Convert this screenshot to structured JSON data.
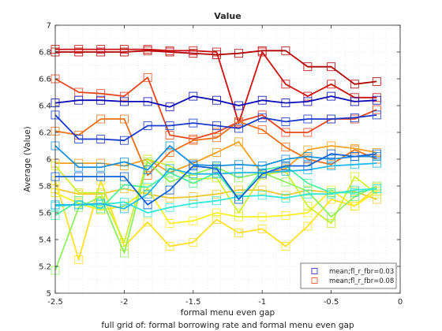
{
  "chart_data": {
    "type": "line",
    "title": "Value",
    "xlabel": "formal menu even gap",
    "ylabel": "Average (Value)",
    "caption": "full grid of: formal borrowing rate and formal menu even gap",
    "xlim": [
      -2.5,
      0
    ],
    "ylim": [
      5,
      7
    ],
    "x_ticks": [
      "-2.5",
      "-2",
      "-1.5",
      "-1",
      "-0.5",
      "0"
    ],
    "y_ticks": [
      "5",
      "5.2",
      "5.4",
      "5.6",
      "5.8",
      "6",
      "6.2",
      "6.4",
      "6.6",
      "6.8",
      "7"
    ],
    "grid": "dotted, major and minor",
    "legend_position": "bottom-right",
    "marker": "open square",
    "x": [
      -2.5,
      -2.33,
      -2.17,
      -2.0,
      -1.83,
      -1.67,
      -1.5,
      -1.33,
      -1.17,
      -1.0,
      -0.83,
      -0.67,
      -0.5,
      -0.33,
      -0.17
    ],
    "legend": [
      {
        "label": "mean;fl_r_fbr=0.03",
        "color": "#1f1fd6"
      },
      {
        "label": "mean;fl_r_fbr=0.08",
        "color": "#e8451e"
      }
    ],
    "series": [
      {
        "color": "#b00000",
        "values": [
          6.8,
          6.8,
          6.8,
          6.8,
          6.81,
          6.8,
          6.79,
          6.78,
          6.79,
          6.81,
          6.81,
          6.69,
          6.69,
          6.56,
          6.58
        ]
      },
      {
        "color": "#cc1010",
        "values": [
          6.82,
          6.82,
          6.82,
          6.82,
          6.82,
          6.81,
          6.81,
          6.8,
          6.27,
          6.8,
          6.56,
          6.47,
          6.56,
          6.46,
          6.46
        ]
      },
      {
        "color": "#e8451e",
        "values": [
          6.6,
          6.5,
          6.49,
          6.47,
          6.61,
          6.18,
          6.15,
          6.2,
          6.28,
          6.33,
          6.2,
          6.2,
          6.3,
          6.3,
          6.37
        ]
      },
      {
        "color": "#f07018",
        "values": [
          6.21,
          6.18,
          6.3,
          6.3,
          5.88,
          6.05,
          6.14,
          6.16,
          6.28,
          6.22,
          6.09,
          6.0,
          5.96,
          6.07,
          6.0
        ]
      },
      {
        "color": "#f5a020",
        "values": [
          5.97,
          5.97,
          5.97,
          5.95,
          6.0,
          5.9,
          5.97,
          6.05,
          6.13,
          5.89,
          5.93,
          6.07,
          6.1,
          6.08,
          6.05
        ]
      },
      {
        "color": "#f0c830",
        "values": [
          5.78,
          5.74,
          5.74,
          5.78,
          5.74,
          5.71,
          5.72,
          5.74,
          5.77,
          5.77,
          5.73,
          5.77,
          5.75,
          5.76,
          5.7
        ]
      },
      {
        "color": "#ffe020",
        "values": [
          5.84,
          5.25,
          5.84,
          5.35,
          5.53,
          5.35,
          5.38,
          5.55,
          5.45,
          5.48,
          5.35,
          5.5,
          5.7,
          5.65,
          5.79
        ]
      },
      {
        "color": "#f8f020",
        "values": [
          5.75,
          5.67,
          5.62,
          5.65,
          5.78,
          5.52,
          5.54,
          5.6,
          5.57,
          5.57,
          5.58,
          5.6,
          5.77,
          5.65,
          5.76
        ]
      },
      {
        "color": "#d0f030",
        "values": [
          5.95,
          5.75,
          5.75,
          5.38,
          6.0,
          5.95,
          5.85,
          5.86,
          5.6,
          5.88,
          5.91,
          5.65,
          5.52,
          5.87,
          5.74
        ]
      },
      {
        "color": "#90f060",
        "values": [
          5.17,
          5.64,
          5.72,
          5.3,
          5.98,
          5.83,
          5.89,
          5.94,
          5.86,
          5.9,
          5.83,
          5.76,
          5.57,
          5.72,
          5.8
        ]
      },
      {
        "color": "#50f0a0",
        "values": [
          5.58,
          5.69,
          5.63,
          5.81,
          5.79,
          5.9,
          5.82,
          5.9,
          5.7,
          5.92,
          5.95,
          5.82,
          5.75,
          5.75,
          5.78
        ]
      },
      {
        "color": "#30e8d8",
        "values": [
          5.65,
          5.66,
          5.66,
          5.68,
          5.6,
          5.64,
          5.67,
          5.69,
          5.72,
          5.73,
          5.71,
          5.74,
          5.74,
          5.77,
          5.78
        ]
      },
      {
        "color": "#20b8e8",
        "values": [
          5.66,
          5.66,
          5.67,
          5.63,
          5.74,
          5.93,
          5.89,
          5.89,
          5.9,
          5.9,
          5.91,
          5.92,
          5.95,
          5.96,
          5.97
        ]
      },
      {
        "color": "#1890e0",
        "values": [
          6.1,
          5.94,
          5.94,
          5.98,
          5.92,
          6.1,
          5.96,
          5.95,
          5.96,
          5.95,
          6.0,
          6.02,
          6.0,
          6.02,
          6.02
        ]
      },
      {
        "color": "#1060d8",
        "values": [
          5.87,
          5.87,
          5.87,
          5.87,
          5.66,
          5.77,
          5.95,
          5.93,
          5.7,
          5.89,
          5.95,
          5.95,
          6.04,
          6.02,
          6.04
        ]
      },
      {
        "color": "#1838d0",
        "values": [
          6.33,
          6.15,
          6.15,
          6.14,
          6.25,
          6.25,
          6.27,
          6.25,
          6.23,
          6.31,
          6.28,
          6.3,
          6.3,
          6.31,
          6.33
        ]
      },
      {
        "color": "#0808b8",
        "values": [
          6.42,
          6.44,
          6.44,
          6.43,
          6.43,
          6.39,
          6.47,
          6.44,
          6.4,
          6.44,
          6.42,
          6.43,
          6.47,
          6.43,
          6.44
        ]
      }
    ]
  }
}
